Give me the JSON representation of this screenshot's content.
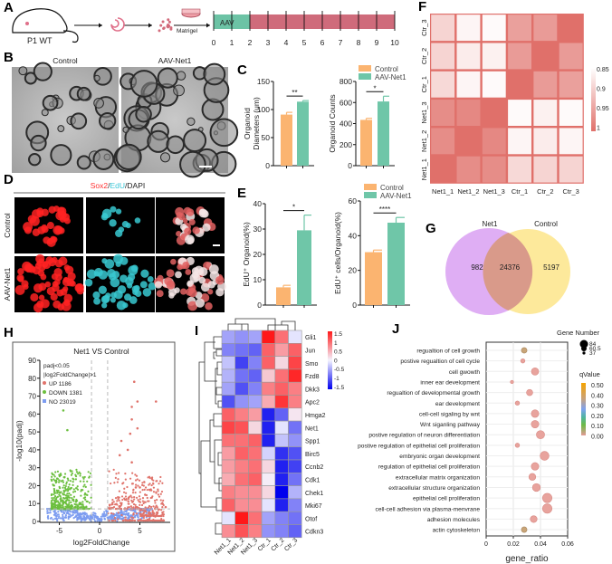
{
  "panel_labels": {
    "A": "A",
    "B": "B",
    "C": "C",
    "D": "D",
    "E": "E",
    "F": "F",
    "G": "G",
    "H": "H",
    "I": "I",
    "J": "J"
  },
  "panel_a": {
    "mouse_label": "P1 WT",
    "matrigel_label": "Matrigel",
    "aav_label": "AAV",
    "days": [
      0,
      1,
      2,
      3,
      4,
      5,
      6,
      7,
      8,
      9,
      10
    ]
  },
  "panel_b": {
    "titles": [
      "Control",
      "AAV-Net1"
    ]
  },
  "panel_d": {
    "title_sox2": "Sox2",
    "slash1": "/",
    "title_edu": "EdU",
    "title_dapi": "/DAPI",
    "rows": [
      "Control",
      "AAV-Net1"
    ]
  },
  "legend": {
    "items": [
      "Control",
      "AAV-Net1"
    ]
  },
  "colors": {
    "control": "#fbb470",
    "aav": "#6fc6a8",
    "timeline_aav": "#6cc3a5",
    "timeline_rest": "#cf6b7b",
    "up": "#e0736b",
    "down": "#6cbf3f",
    "no": "#7c9cf0",
    "venn_net1": "#d9a0f2",
    "venn_control": "#fde58a"
  },
  "chart_data": [
    {
      "id": "C1",
      "type": "bar",
      "categories": [
        "Control",
        "AAV-Net1"
      ],
      "values": [
        91,
        114
      ],
      "errors": [
        4,
        2
      ],
      "ylabel": [
        "Organoid",
        "Diameters (um)"
      ],
      "ylim": [
        0,
        150
      ],
      "yticks": [
        0,
        50,
        100,
        150
      ],
      "significance": "**"
    },
    {
      "id": "C2",
      "type": "bar",
      "categories": [
        "Control",
        "AAV-Net1"
      ],
      "values": [
        435,
        610
      ],
      "errors": [
        15,
        50
      ],
      "ylabel": [
        "Organoid Counts"
      ],
      "ylim": [
        0,
        800
      ],
      "yticks": [
        0,
        200,
        400,
        600,
        800
      ],
      "significance": "*"
    },
    {
      "id": "E1",
      "type": "bar",
      "categories": [
        "Control",
        "AAV-Net1"
      ],
      "values": [
        7,
        29.5
      ],
      "errors": [
        0.8,
        6
      ],
      "ylabel": [
        "EdU⁺ Organoid(%)"
      ],
      "ylim": [
        0,
        40
      ],
      "yticks": [
        0,
        10,
        20,
        30,
        40
      ],
      "significance": "*"
    },
    {
      "id": "E2",
      "type": "bar",
      "categories": [
        "Control",
        "AAV-Net1"
      ],
      "values": [
        30.5,
        47.5
      ],
      "errors": [
        1.2,
        3
      ],
      "ylabel": [
        "EdU⁺ cells/Organoid(%)"
      ],
      "ylim": [
        0,
        60
      ],
      "yticks": [
        0,
        20,
        40,
        60
      ],
      "significance": "****"
    },
    {
      "id": "F",
      "type": "heatmap",
      "rows": [
        "Ctr_3",
        "Ctr_2",
        "Ctr_1",
        "Net1_3",
        "Net1_2",
        "Net1_1"
      ],
      "columns": [
        "Net1_1",
        "Net1_2",
        "Net1_3",
        "Ctr_1",
        "Ctr_2",
        "Ctr_3"
      ],
      "values": [
        [
          0.895,
          0.86,
          0.855,
          0.95,
          0.955,
          1
        ],
        [
          0.895,
          0.87,
          0.865,
          0.955,
          1,
          0.955
        ],
        [
          0.89,
          0.86,
          0.855,
          1,
          0.955,
          0.95
        ],
        [
          0.97,
          0.975,
          1,
          0.855,
          0.865,
          0.855
        ],
        [
          0.97,
          1,
          0.975,
          0.86,
          0.87,
          0.86
        ],
        [
          1,
          0.97,
          0.97,
          0.89,
          0.895,
          0.895
        ]
      ],
      "colorbar_ticks": [
        "0.85",
        "0.9",
        "0.95",
        "1"
      ],
      "range": [
        0.85,
        1
      ]
    },
    {
      "id": "G",
      "type": "venn",
      "sets": [
        "Net1",
        "Control"
      ],
      "values": {
        "net1_only": 982,
        "shared": 24376,
        "control_only": 5197
      }
    },
    {
      "id": "H",
      "type": "scatter",
      "title": "Net1 VS Control",
      "xlabel": "log2FoldChange",
      "ylabel": "-log10(padj)",
      "xticks": [
        -5,
        0,
        5
      ],
      "yticks": [
        0,
        10,
        20,
        30,
        40,
        50,
        60,
        70,
        80,
        90
      ],
      "xlim": [
        -7,
        8.5
      ],
      "ylim": [
        0,
        90
      ],
      "legend": {
        "criteria": [
          "padj<0.05",
          "|log2FoldChange|>1"
        ],
        "groups": [
          "UP 1186",
          "DOWN 1381",
          "NO 23019"
        ]
      },
      "thresholds": {
        "log2fc": 1,
        "neg_log10_padj": 7
      },
      "highlighted_points": [
        [
          -4.5,
          62
        ],
        [
          -4.0,
          51
        ],
        [
          4.3,
          78
        ],
        [
          7.0,
          67
        ],
        [
          4.7,
          67
        ],
        [
          4.0,
          64
        ],
        [
          4.0,
          57
        ],
        [
          4.7,
          52
        ],
        [
          3.8,
          49
        ],
        [
          2.7,
          45
        ],
        [
          3.5,
          40
        ],
        [
          2.5,
          37
        ],
        [
          4.0,
          33
        ],
        [
          5.0,
          19
        ],
        [
          4.5,
          19
        ],
        [
          8.2,
          8
        ]
      ]
    },
    {
      "id": "I",
      "type": "heatmap",
      "rows": [
        "Gli1",
        "Jun",
        "Smo",
        "Fzd8",
        "Dkk3",
        "Apc2",
        "Hmga2",
        "Net1",
        "Spp1",
        "Birc5",
        "Ccnb2",
        "Cdk1",
        "Chek1",
        "Mki67",
        "Otof",
        "Cdkn3"
      ],
      "columns": [
        "Net1_1",
        "Net1_2",
        "Net1_3",
        "Ctr_1",
        "Ctr_2",
        "Ctr_3"
      ],
      "values": [
        [
          -0.5,
          -0.6,
          -0.5,
          1.6,
          0.9,
          -0.1
        ],
        [
          -0.7,
          -0.8,
          -0.9,
          1.0,
          0.6,
          1.0
        ],
        [
          -0.3,
          -1.1,
          -0.7,
          1.0,
          0.2,
          1.2
        ],
        [
          -0.4,
          -0.8,
          -0.9,
          0.3,
          0.9,
          1.4
        ],
        [
          -0.5,
          -1.0,
          -0.7,
          0.8,
          1.0,
          0.8
        ],
        [
          -1.0,
          -0.6,
          -0.5,
          0.5,
          1.3,
          0.8
        ],
        [
          1.0,
          0.8,
          0.6,
          -1.3,
          -0.9,
          0.1
        ],
        [
          1.2,
          1.1,
          0.2,
          -1.3,
          -0.1,
          -0.8
        ],
        [
          0.9,
          0.9,
          1.0,
          -1.3,
          -0.3,
          -0.6
        ],
        [
          0.6,
          1.0,
          0.9,
          -0.2,
          -1.2,
          -1.0
        ],
        [
          0.6,
          0.8,
          0.9,
          0.2,
          -1.3,
          -1.1
        ],
        [
          0.5,
          0.9,
          1.0,
          0.05,
          -1.3,
          -0.8
        ],
        [
          0.8,
          0.7,
          0.7,
          0.2,
          -1.6,
          -0.4
        ],
        [
          1.0,
          0.7,
          0.7,
          -0.1,
          -1.3,
          -0.7
        ],
        [
          -0.1,
          1.5,
          0.9,
          -0.5,
          -0.7,
          -0.8
        ],
        [
          0.7,
          1.1,
          0.8,
          -0.6,
          -0.7,
          -0.9
        ]
      ],
      "colorbar_ticks": [
        "1.5",
        "1",
        "0.5",
        "0",
        "-0.5",
        "-1",
        "-1.5"
      ],
      "range": [
        -1.5,
        1.5
      ]
    },
    {
      "id": "J",
      "type": "scatter",
      "xlabel": "gene_ratio",
      "xticks": [
        "0",
        "0.02",
        "0.04",
        "0.06"
      ],
      "xlim": [
        0,
        0.06
      ],
      "terms": [
        "regualtion of cell growth",
        "postive regualtion of cell cycle",
        "cell gwowth",
        "inner ear development",
        "regualtion of developmental growth",
        "ear development",
        "cell-cell sigaling by wnt",
        "Wnt siganling pathway",
        "postive regulation of neuron differentiation",
        "postive regulation of epithelial cell proliferation",
        "embryonic organ development",
        "regulation of epithelial cell proliferation",
        "extracellular matrix organization",
        "extracellular structure organization",
        "epithelial cell proliferation",
        "cell-cell adhesion via plasma-menvrane",
        "adhesion molecules",
        "actin cytoskeleton"
      ],
      "gene_ratio": [
        0.028,
        0.027,
        0.036,
        0.019,
        0.032,
        0.023,
        0.036,
        0.036,
        0.04,
        0.023,
        0.043,
        0.036,
        0.034,
        0.037,
        0.045,
        0.045,
        0.035,
        0.028
      ],
      "gene_number": [
        55,
        45,
        68,
        37,
        60,
        45,
        70,
        70,
        75,
        45,
        80,
        70,
        65,
        72,
        84,
        84,
        64,
        55
      ],
      "qvalue": [
        0.35,
        0.0,
        0.0,
        0.0,
        0.0,
        0.0,
        0.0,
        0.0,
        0.0,
        0.0,
        0.0,
        0.0,
        0.0,
        0.0,
        0.0,
        0.0,
        0.0,
        0.35
      ],
      "size_legend": {
        "title": "Gene Number",
        "values": [
          "84",
          "60.5",
          "37"
        ]
      },
      "color_legend": {
        "title": "qValue",
        "ticks": [
          "0.50",
          "0.40",
          "0.30",
          "0.20",
          "0.10",
          "0.00"
        ]
      }
    }
  ]
}
